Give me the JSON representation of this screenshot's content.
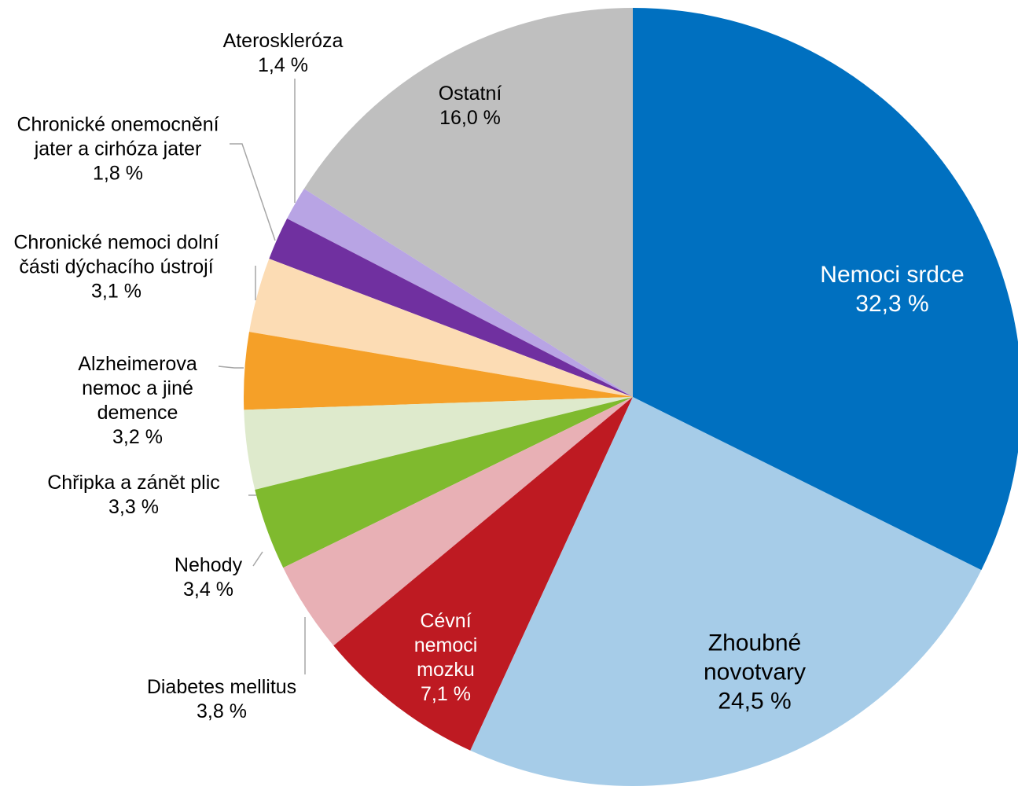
{
  "chart_data": {
    "type": "pie",
    "categories": [
      "Nemoci srdce",
      "Zhoubné novotvary",
      "Cévní nemoci mozku",
      "Diabetes mellitus",
      "Nehody",
      "Chřipka a zánět plic",
      "Alzheimerova nemoc a jiné demence",
      "Chronické nemoci dolní části dýchacího ústrojí",
      "Chronické onemocnění jater a cirhóza jater",
      "Ateroskleróza",
      "Ostatní"
    ],
    "values": [
      32.3,
      24.5,
      7.1,
      3.8,
      3.4,
      3.3,
      3.2,
      3.1,
      1.8,
      1.4,
      16.0
    ],
    "value_labels": [
      "32,3 %",
      "24,5 %",
      "7,1 %",
      "3,8 %",
      "3,4 %",
      "3,3 %",
      "3,2 %",
      "3,1 %",
      "1,8 %",
      "1,4 %",
      "16,0 %"
    ],
    "colors": [
      "#0070c0",
      "#a6cce8",
      "#be1a22",
      "#e8b0b5",
      "#7fba2e",
      "#deeacc",
      "#f5a028",
      "#fcdcb4",
      "#7030a0",
      "#b8a4e4",
      "#bfbfbf"
    ]
  }
}
